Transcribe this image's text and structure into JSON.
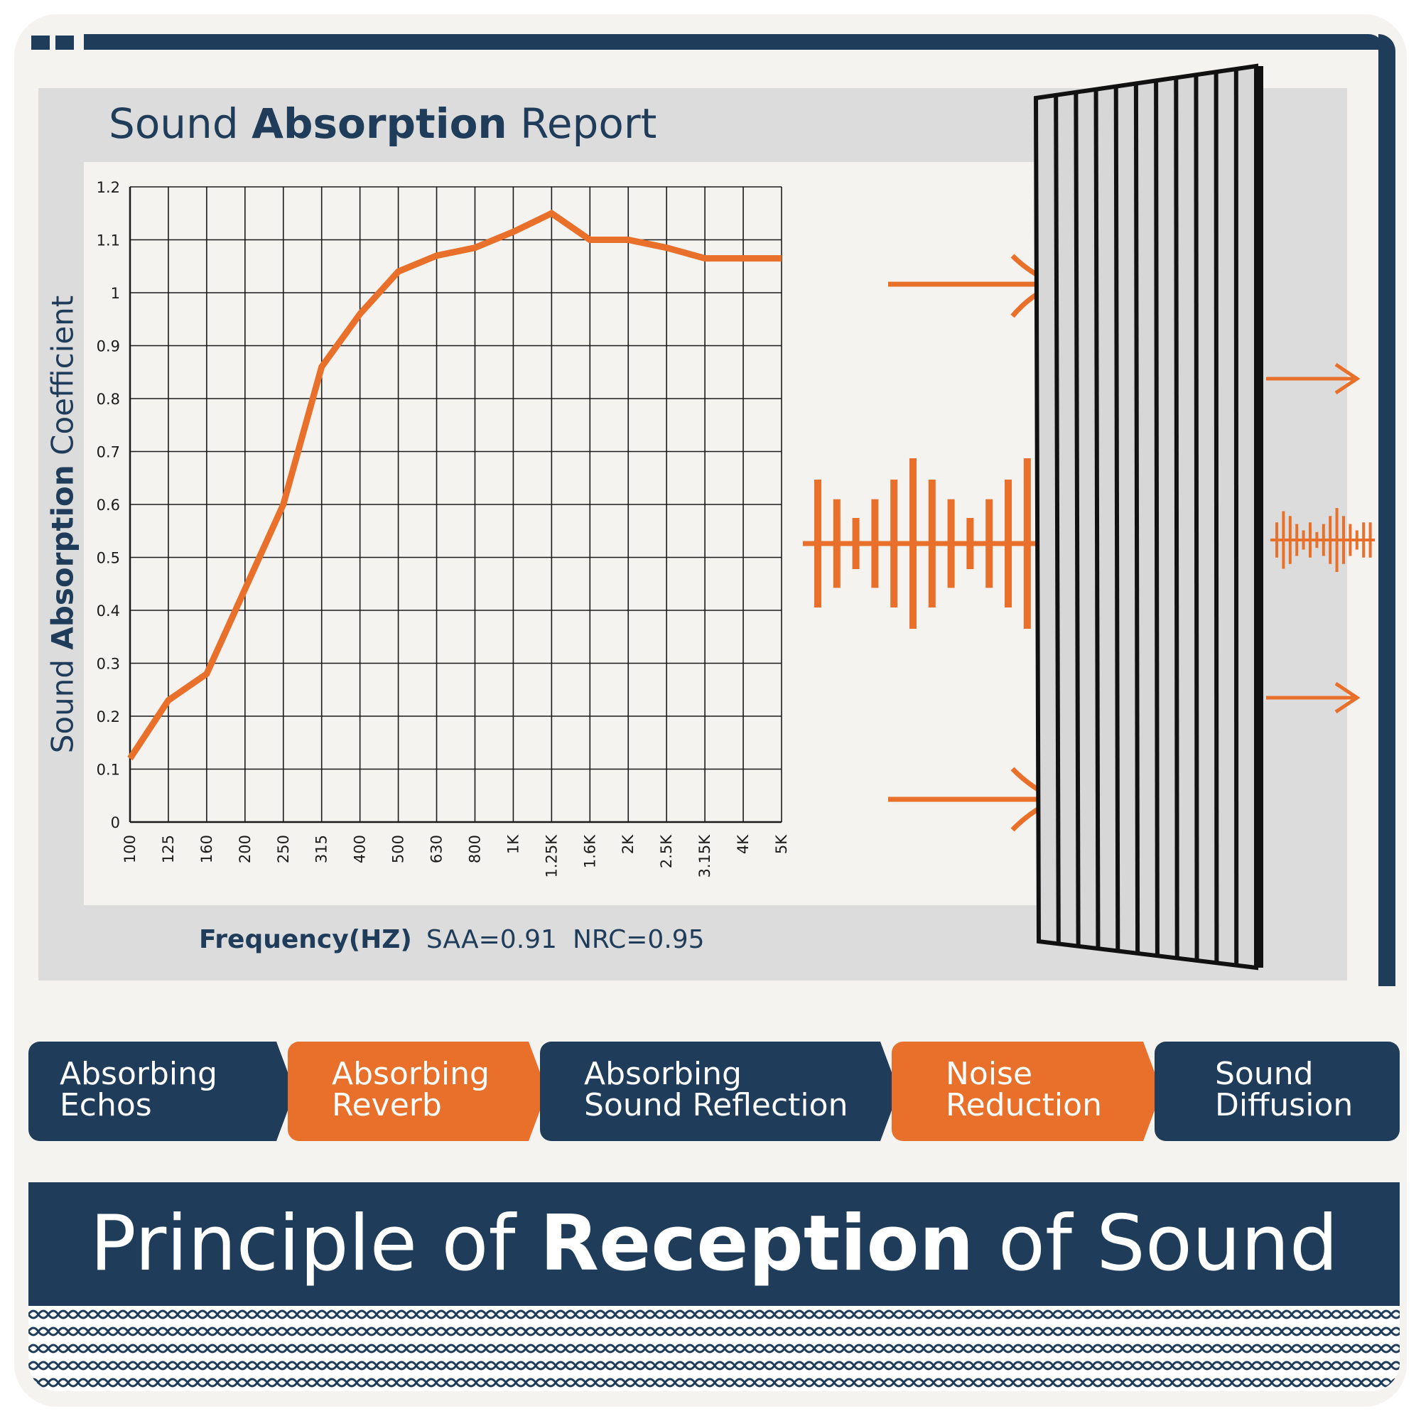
{
  "colors": {
    "navy": "#1f3d5a",
    "orange": "#e8702a",
    "panel": "#dcdcdc",
    "paper": "#f5f3f0"
  },
  "report": {
    "title_pre": "Sound ",
    "title_bold": "Absorption",
    "title_post": " Report",
    "ylabel_pre": "Sound ",
    "ylabel_bold": "Absorption",
    "ylabel_post": " Coefficient",
    "xlabel": "Frequency(HZ)",
    "saa": "SAA=0.91",
    "nrc": "NRC=0.95"
  },
  "chart_data": {
    "type": "line",
    "title": "Sound Absorption Report",
    "xlabel": "Frequency(HZ)",
    "ylabel": "Sound Absorption Coefficient",
    "categories": [
      "100",
      "125",
      "160",
      "200",
      "250",
      "315",
      "400",
      "500",
      "630",
      "800",
      "1K",
      "1.25K",
      "1.6K",
      "2K",
      "2.5K",
      "3.15K",
      "4K",
      "5K"
    ],
    "values": [
      0.12,
      0.23,
      0.28,
      0.44,
      0.6,
      0.86,
      0.96,
      1.04,
      1.07,
      1.085,
      1.115,
      1.15,
      1.1,
      1.1,
      1.085,
      1.065,
      1.065,
      1.065
    ],
    "ylim": [
      0,
      1.2
    ],
    "yticks": [
      "0",
      "0.1",
      "0.2",
      "0.3",
      "0.4",
      "0.5",
      "0.6",
      "0.7",
      "0.8",
      "0.9",
      "1",
      "1.1",
      "1.2"
    ],
    "grid": true,
    "color": "#e8702a"
  },
  "features": [
    {
      "line1": "Absorbing",
      "line2": "Echos",
      "color": "#1f3d5a"
    },
    {
      "line1": "Absorbing",
      "line2": "Reverb",
      "color": "#e8702a"
    },
    {
      "line1": "Absorbing",
      "line2": "Sound Reflection",
      "color": "#1f3d5a"
    },
    {
      "line1": "Noise",
      "line2": "Reduction",
      "color": "#e8702a"
    },
    {
      "line1": "Sound",
      "line2": "Diffusion",
      "color": "#1f3d5a"
    }
  ],
  "banner": {
    "pre": "Principle of ",
    "bold": "Reception",
    "post": " of Sound"
  },
  "illustration": {
    "big_wave_heights": [
      0.75,
      0.52,
      0.3,
      0.52,
      0.75,
      1.0,
      0.75,
      0.52,
      0.3,
      0.52,
      0.75,
      1.0,
      0.75,
      0.52,
      0.3,
      0.52,
      0.75,
      1.0
    ],
    "small_wave_heights": [
      0.55,
      0.9,
      0.75,
      0.5,
      0.3,
      0.55,
      0.25,
      0.5,
      0.75,
      1.0,
      0.75,
      0.5,
      0.3,
      0.55,
      0.55
    ],
    "icons": [
      "acoustic-panel-icon",
      "arrow-right-icon",
      "sound-wave-icon"
    ]
  }
}
